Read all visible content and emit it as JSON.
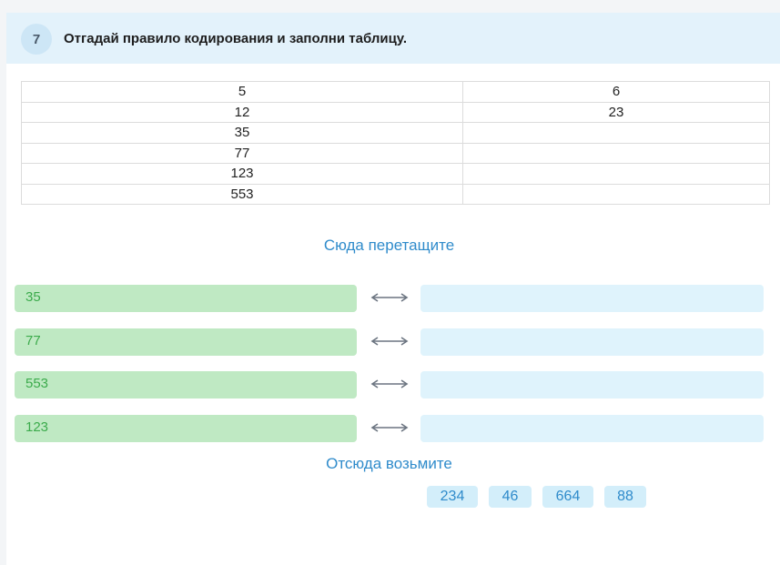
{
  "task": {
    "number": "7",
    "title": "Отгадай правило кодирования и заполни таблицу."
  },
  "table": {
    "rows": [
      [
        "5",
        "6"
      ],
      [
        "12",
        "23"
      ],
      [
        "35",
        ""
      ],
      [
        "77",
        ""
      ],
      [
        "123",
        ""
      ],
      [
        "553",
        ""
      ]
    ]
  },
  "drop_zone": {
    "title": "Сюда перетащите",
    "pairs": [
      {
        "source": "35",
        "target": ""
      },
      {
        "source": "77",
        "target": ""
      },
      {
        "source": "553",
        "target": ""
      },
      {
        "source": "123",
        "target": ""
      }
    ]
  },
  "pool": {
    "title": "Отсюда возьмите",
    "chips": [
      "234",
      "46",
      "664",
      "88"
    ]
  },
  "icons": {
    "pair_arrow": "double-arrow-icon"
  },
  "colors": {
    "header_bg": "#e3f2fb",
    "source_bg": "#bfe9c3",
    "source_text": "#3cab4c",
    "target_bg": "#dff3fc",
    "accent_text": "#2f8bcb",
    "chip_bg": "#d3eefa"
  }
}
